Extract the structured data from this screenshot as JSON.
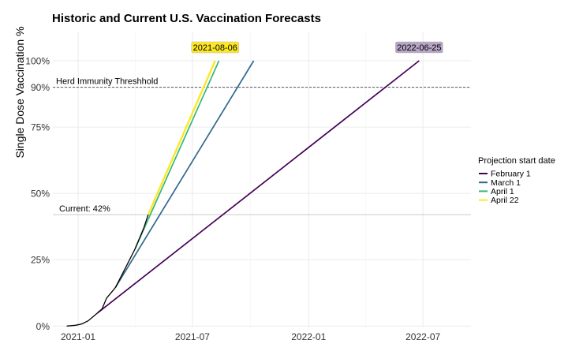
{
  "chart_data": {
    "type": "line",
    "title": "Historic and Current U.S. Vaccination Forecasts",
    "xlabel": "",
    "ylabel": "Single Dose Vaccination %",
    "x_ticks": [
      "2021-01",
      "2021-07",
      "2022-01",
      "2022-07"
    ],
    "y_ticks": [
      {
        "value": 0,
        "label": "0%"
      },
      {
        "value": 25,
        "label": "25%"
      },
      {
        "value": 50,
        "label": "50%"
      },
      {
        "value": 75,
        "label": "75%"
      },
      {
        "value": 90,
        "label": "90%"
      },
      {
        "value": 100,
        "label": "100%"
      }
    ],
    "xlim": [
      "2020-11-22",
      "2022-09-15"
    ],
    "ylim": [
      -0.5,
      111
    ],
    "grid": true,
    "legend": {
      "title": "Projection start date",
      "position": "right"
    },
    "reference_lines": [
      {
        "value": 90,
        "label": "Herd Immunity Threshhold",
        "style": "dashed"
      },
      {
        "value": 42,
        "label": "Current: 42%",
        "style": "solid"
      }
    ],
    "date_labels": [
      {
        "text": "2021-08-06",
        "date": "2021-08-06",
        "y": 105,
        "color": "#fde725"
      },
      {
        "text": "2022-06-25",
        "date": "2022-06-25",
        "y": 105,
        "color": "#b6a4c4"
      }
    ],
    "historic": {
      "color": "#000000",
      "points": [
        {
          "x": "2020-12-14",
          "y": 0
        },
        {
          "x": "2020-12-28",
          "y": 0.3
        },
        {
          "x": "2021-01-07",
          "y": 0.8
        },
        {
          "x": "2021-01-17",
          "y": 2
        },
        {
          "x": "2021-01-27",
          "y": 4
        },
        {
          "x": "2021-02-01",
          "y": 5
        },
        {
          "x": "2021-02-08",
          "y": 6.5
        },
        {
          "x": "2021-02-15",
          "y": 10.5
        },
        {
          "x": "2021-02-22",
          "y": 12.5
        },
        {
          "x": "2021-03-01",
          "y": 14.5
        },
        {
          "x": "2021-03-15",
          "y": 21
        },
        {
          "x": "2021-04-01",
          "y": 29
        },
        {
          "x": "2021-04-15",
          "y": 37
        },
        {
          "x": "2021-04-22",
          "y": 42
        }
      ]
    },
    "series": [
      {
        "name": "February 1",
        "color": "#440154",
        "x": [
          "2021-02-01",
          "2022-06-25"
        ],
        "y": [
          5,
          100
        ]
      },
      {
        "name": "March 1",
        "color": "#31688e",
        "x": [
          "2021-03-01",
          "2021-10-06"
        ],
        "y": [
          14.5,
          100
        ]
      },
      {
        "name": "April 1",
        "color": "#35b779",
        "x": [
          "2021-04-01",
          "2021-08-12"
        ],
        "y": [
          29,
          100
        ]
      },
      {
        "name": "April 22",
        "color": "#fde725",
        "x": [
          "2021-04-22",
          "2021-08-06"
        ],
        "y": [
          42,
          100
        ]
      }
    ]
  }
}
